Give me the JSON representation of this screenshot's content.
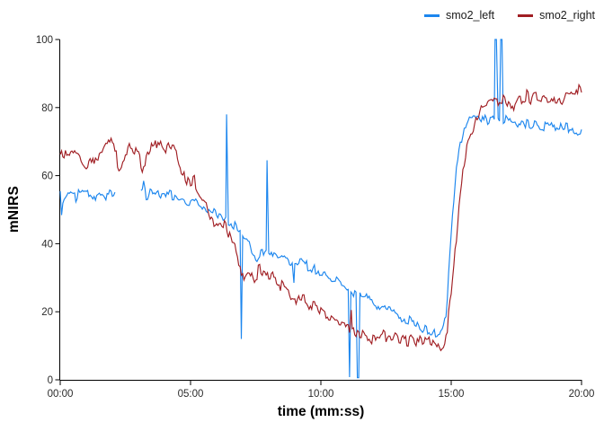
{
  "chart_data": {
    "type": "line",
    "title": "",
    "xlabel": "time (mm:ss)",
    "ylabel": "mNIRS",
    "x_ticks": [
      "00:00",
      "05:00",
      "10:00",
      "15:00",
      "20:00"
    ],
    "x_tick_seconds": [
      0,
      300,
      600,
      900,
      1200
    ],
    "y_ticks": [
      0,
      20,
      40,
      60,
      80,
      100
    ],
    "xlim_seconds": [
      0,
      1200
    ],
    "ylim": [
      0,
      100
    ],
    "grid": "off",
    "legend_position": "top-right",
    "axis_color": "#000000",
    "tick_label_color": "#2b2b2b",
    "series": [
      {
        "name": "smo2_left",
        "color": "#1C86EE",
        "noise": 1.25,
        "gaps": [
          [
            128,
            186
          ]
        ],
        "spikes": [
          [
            383,
            78
          ],
          [
            417,
            12
          ],
          [
            476,
            64.5
          ],
          [
            538,
            28.5
          ],
          [
            666,
            0.8
          ],
          [
            684,
            0.6
          ],
          [
            687,
            0.6
          ],
          [
            1001,
            100
          ],
          [
            1004,
            100
          ],
          [
            1014,
            100
          ],
          [
            1017,
            100
          ]
        ],
        "trend": [
          [
            0,
            55.5
          ],
          [
            3,
            49.5
          ],
          [
            8,
            53.5
          ],
          [
            15,
            54.5
          ],
          [
            35,
            54
          ],
          [
            60,
            54.8
          ],
          [
            85,
            54.2
          ],
          [
            110,
            54.8
          ],
          [
            126,
            55
          ],
          [
            186,
            56
          ],
          [
            193,
            58
          ],
          [
            199,
            50
          ],
          [
            206,
            55.5
          ],
          [
            220,
            54
          ],
          [
            240,
            54.5
          ],
          [
            258,
            54
          ],
          [
            275,
            53.5
          ],
          [
            295,
            52.5
          ],
          [
            315,
            52
          ],
          [
            335,
            50.5
          ],
          [
            352,
            49.5
          ],
          [
            368,
            47.5
          ],
          [
            385,
            46.2
          ],
          [
            398,
            45.5
          ],
          [
            410,
            44.5
          ],
          [
            420,
            43.2
          ],
          [
            432,
            41.5
          ],
          [
            442,
            38.5
          ],
          [
            452,
            34.5
          ],
          [
            462,
            37.5
          ],
          [
            472,
            38.5
          ],
          [
            485,
            37
          ],
          [
            498,
            36.2
          ],
          [
            512,
            35.5
          ],
          [
            526,
            34.5
          ],
          [
            540,
            33
          ],
          [
            553,
            34.8
          ],
          [
            566,
            34
          ],
          [
            582,
            33
          ],
          [
            598,
            31.5
          ],
          [
            615,
            30.5
          ],
          [
            632,
            29
          ],
          [
            650,
            27.3
          ],
          [
            668,
            26
          ],
          [
            690,
            25
          ],
          [
            708,
            23.5
          ],
          [
            726,
            22.5
          ],
          [
            744,
            21.8
          ],
          [
            764,
            20.3
          ],
          [
            784,
            19
          ],
          [
            805,
            16.8
          ],
          [
            825,
            15.5
          ],
          [
            845,
            14.3
          ],
          [
            862,
            13.4
          ],
          [
            874,
            13.8
          ],
          [
            882,
            15.5
          ],
          [
            888,
            20
          ],
          [
            894,
            30
          ],
          [
            900,
            43
          ],
          [
            906,
            54
          ],
          [
            912,
            62
          ],
          [
            918,
            67.5
          ],
          [
            924,
            71
          ],
          [
            930,
            73.5
          ],
          [
            938,
            75.5
          ],
          [
            950,
            76.5
          ],
          [
            968,
            77
          ],
          [
            988,
            76.3
          ],
          [
            1002,
            77.2
          ],
          [
            1012,
            77
          ],
          [
            1026,
            76
          ],
          [
            1048,
            75.5
          ],
          [
            1072,
            75.5
          ],
          [
            1096,
            75
          ],
          [
            1118,
            74.6
          ],
          [
            1138,
            75
          ],
          [
            1158,
            74
          ],
          [
            1176,
            73.5
          ],
          [
            1190,
            72.8
          ],
          [
            1200,
            73.6
          ]
        ]
      },
      {
        "name": "smo2_right",
        "color": "#A01E23",
        "noise": 1.55,
        "gaps": [],
        "spikes": [
          [
            670,
            20.5
          ]
        ],
        "trend": [
          [
            0,
            66
          ],
          [
            12,
            67.5
          ],
          [
            28,
            65.5
          ],
          [
            42,
            66.5
          ],
          [
            58,
            62.5
          ],
          [
            72,
            64
          ],
          [
            88,
            66
          ],
          [
            105,
            67.5
          ],
          [
            118,
            70
          ],
          [
            135,
            63
          ],
          [
            150,
            66.5
          ],
          [
            163,
            68
          ],
          [
            178,
            66
          ],
          [
            190,
            62.5
          ],
          [
            203,
            66
          ],
          [
            217,
            68.5
          ],
          [
            232,
            70
          ],
          [
            245,
            68
          ],
          [
            258,
            69.5
          ],
          [
            270,
            67
          ],
          [
            282,
            60
          ],
          [
            295,
            57.5
          ],
          [
            310,
            58.5
          ],
          [
            325,
            53
          ],
          [
            340,
            50
          ],
          [
            353,
            47
          ],
          [
            365,
            44.5
          ],
          [
            374,
            46
          ],
          [
            388,
            43
          ],
          [
            400,
            40
          ],
          [
            412,
            34.5
          ],
          [
            424,
            29
          ],
          [
            436,
            31
          ],
          [
            448,
            30
          ],
          [
            460,
            32.5
          ],
          [
            472,
            31
          ],
          [
            488,
            30.5
          ],
          [
            502,
            29
          ],
          [
            518,
            27
          ],
          [
            533,
            24.5
          ],
          [
            545,
            23.5
          ],
          [
            557,
            25
          ],
          [
            572,
            22.5
          ],
          [
            588,
            21.5
          ],
          [
            600,
            21
          ],
          [
            615,
            18.5
          ],
          [
            632,
            17.5
          ],
          [
            648,
            16
          ],
          [
            665,
            15
          ],
          [
            682,
            14
          ],
          [
            700,
            13
          ],
          [
            720,
            12.5
          ],
          [
            740,
            13.5
          ],
          [
            760,
            12
          ],
          [
            780,
            12.5
          ],
          [
            800,
            11.5
          ],
          [
            820,
            12.2
          ],
          [
            838,
            11.5
          ],
          [
            853,
            12.5
          ],
          [
            866,
            10.5
          ],
          [
            876,
            8.5
          ],
          [
            884,
            10
          ],
          [
            891,
            15
          ],
          [
            898,
            23
          ],
          [
            906,
            34
          ],
          [
            913,
            44
          ],
          [
            920,
            54
          ],
          [
            928,
            62
          ],
          [
            936,
            68
          ],
          [
            946,
            72.5
          ],
          [
            956,
            76
          ],
          [
            967,
            78.5
          ],
          [
            980,
            80.5
          ],
          [
            995,
            81.5
          ],
          [
            1012,
            82
          ],
          [
            1030,
            82
          ],
          [
            1038,
            80.8
          ],
          [
            1050,
            82.2
          ],
          [
            1065,
            82.5
          ],
          [
            1075,
            84
          ],
          [
            1083,
            82.5
          ],
          [
            1093,
            84
          ],
          [
            1102,
            82.5
          ],
          [
            1112,
            84
          ],
          [
            1122,
            83
          ],
          [
            1135,
            83.5
          ],
          [
            1145,
            81.8
          ],
          [
            1155,
            82.2
          ],
          [
            1163,
            84.3
          ],
          [
            1180,
            84.3
          ],
          [
            1193,
            84.6
          ],
          [
            1200,
            84.5
          ]
        ]
      }
    ]
  }
}
